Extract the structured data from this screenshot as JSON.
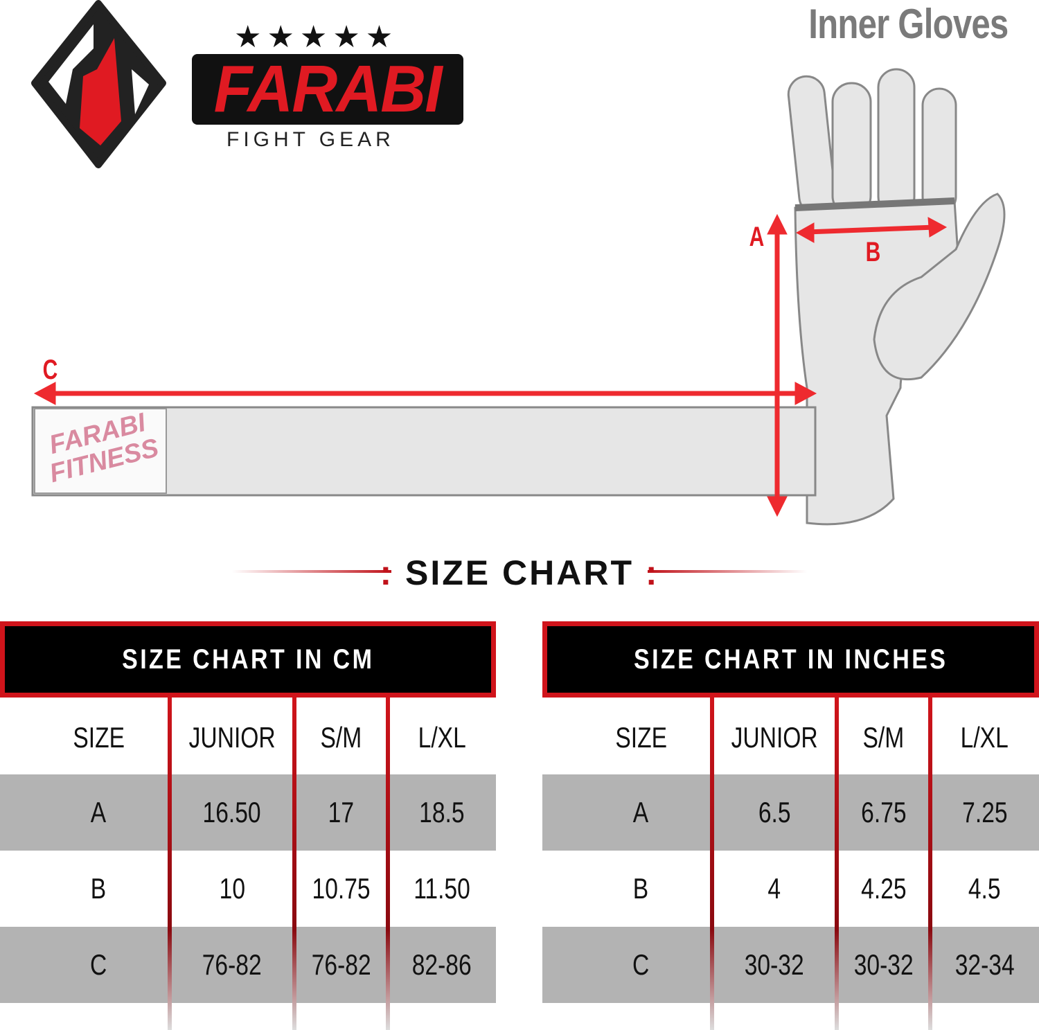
{
  "title": "Inner Gloves",
  "brand": {
    "name": "FARABI",
    "tagline": "FIGHT GEAR",
    "strap_label": "FARABI FITNESS",
    "stars": 5,
    "colors": {
      "red": "#e01a22",
      "black": "#111111"
    }
  },
  "diagram": {
    "labels": {
      "a": "A",
      "b": "B",
      "c": "C"
    }
  },
  "size_chart_heading": "SIZE CHART",
  "tables": [
    {
      "header": "SIZE CHART IN CM",
      "columns": [
        "SIZE",
        "JUNIOR",
        "S/M",
        "L/XL"
      ],
      "rows": [
        [
          "A",
          "16.50",
          "17",
          "18.5"
        ],
        [
          "B",
          "10",
          "10.75",
          "11.50"
        ],
        [
          "C",
          "76-82",
          "76-82",
          "82-86"
        ]
      ]
    },
    {
      "header": "SIZE CHART IN INCHES",
      "columns": [
        "SIZE",
        "JUNIOR",
        "S/M",
        "L/XL"
      ],
      "rows": [
        [
          "A",
          "6.5",
          "6.75",
          "7.25"
        ],
        [
          "B",
          "4",
          "4.25",
          "4.5"
        ],
        [
          "C",
          "30-32",
          "30-32",
          "32-34"
        ]
      ]
    }
  ]
}
